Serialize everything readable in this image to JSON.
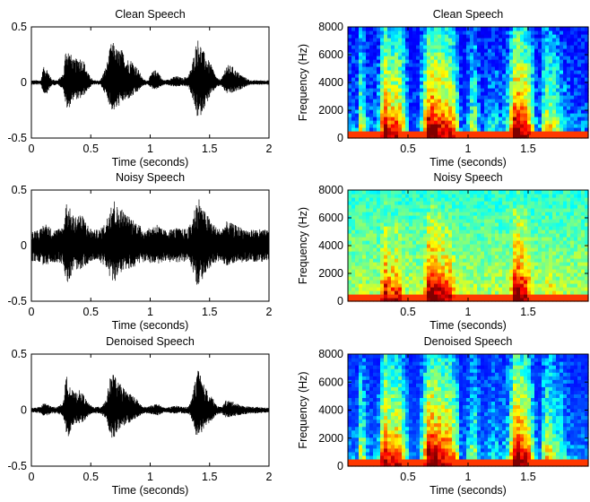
{
  "chart_data": [
    {
      "type": "line",
      "title": "Clean Speech",
      "xlabel": "Time (seconds)",
      "ylabel": "",
      "xlim": [
        0,
        2
      ],
      "ylim": [
        -0.5,
        0.5
      ],
      "xticks": [
        "0",
        "0.5",
        "1",
        "1.5",
        "2"
      ],
      "yticks": [
        "-0.5",
        "0",
        "0.5"
      ],
      "envelope": {
        "t": [
          0,
          0.08,
          0.1,
          0.13,
          0.17,
          0.22,
          0.27,
          0.29,
          0.31,
          0.33,
          0.36,
          0.4,
          0.44,
          0.48,
          0.52,
          0.58,
          0.63,
          0.67,
          0.69,
          0.72,
          0.76,
          0.8,
          0.85,
          0.9,
          0.94,
          0.98,
          1.02,
          1.06,
          1.1,
          1.13,
          1.17,
          1.22,
          1.27,
          1.32,
          1.35,
          1.39,
          1.41,
          1.44,
          1.48,
          1.52,
          1.56,
          1.6,
          1.64,
          1.69,
          1.73,
          1.78,
          1.84,
          1.9,
          2.0
        ],
        "pos": [
          0.02,
          0.02,
          0.14,
          0.13,
          0.03,
          0.02,
          0.08,
          0.32,
          0.3,
          0.26,
          0.2,
          0.24,
          0.2,
          0.08,
          0.02,
          0.02,
          0.15,
          0.35,
          0.36,
          0.3,
          0.3,
          0.22,
          0.2,
          0.12,
          0.03,
          0.02,
          0.1,
          0.12,
          0.03,
          0.02,
          0.04,
          0.06,
          0.04,
          0.06,
          0.15,
          0.38,
          0.4,
          0.3,
          0.22,
          0.15,
          0.04,
          0.03,
          0.16,
          0.15,
          0.1,
          0.06,
          0.02,
          0.02,
          0.02
        ],
        "neg": [
          0.02,
          0.02,
          0.1,
          0.1,
          0.03,
          0.02,
          0.06,
          0.22,
          0.26,
          0.2,
          0.14,
          0.16,
          0.12,
          0.06,
          0.02,
          0.02,
          0.12,
          0.24,
          0.26,
          0.24,
          0.18,
          0.16,
          0.13,
          0.08,
          0.03,
          0.02,
          0.06,
          0.06,
          0.03,
          0.02,
          0.03,
          0.04,
          0.03,
          0.04,
          0.12,
          0.3,
          0.34,
          0.26,
          0.18,
          0.1,
          0.04,
          0.03,
          0.1,
          0.1,
          0.08,
          0.05,
          0.02,
          0.02,
          0.02
        ]
      }
    },
    {
      "type": "heatmap",
      "title": "Clean Speech",
      "xlabel": "Time (seconds)",
      "ylabel": "Frequency (Hz)",
      "xlim": [
        0,
        2
      ],
      "ylim": [
        0,
        8000
      ],
      "xticks": [
        "0.5",
        "1",
        "1.5"
      ],
      "yticks": [
        "0",
        "2000",
        "4000",
        "6000",
        "8000"
      ],
      "colormap": [
        "#00008f",
        "#0000ff",
        "#0080ff",
        "#00ffff",
        "#80ff80",
        "#ffff00",
        "#ff8000",
        "#ff0000",
        "#800000"
      ],
      "energy": [
        0.25,
        0.25,
        0.55,
        0.5,
        0.25,
        0.22,
        0.4,
        0.85,
        0.82,
        0.78,
        0.72,
        0.75,
        0.7,
        0.45,
        0.18,
        0.18,
        0.55,
        0.88,
        0.9,
        0.85,
        0.82,
        0.78,
        0.75,
        0.6,
        0.22,
        0.2,
        0.45,
        0.5,
        0.22,
        0.18,
        0.3,
        0.35,
        0.28,
        0.32,
        0.55,
        0.9,
        0.92,
        0.85,
        0.78,
        0.65,
        0.3,
        0.25,
        0.6,
        0.58,
        0.5,
        0.4,
        0.25,
        0.22,
        0.22
      ],
      "noise_floor": 0.15
    },
    {
      "type": "line",
      "title": "Noisy Speech",
      "xlabel": "Time (seconds)",
      "ylabel": "",
      "xlim": [
        0,
        2
      ],
      "ylim": [
        -0.5,
        0.5
      ],
      "xticks": [
        "0",
        "0.5",
        "1",
        "1.5",
        "2"
      ],
      "yticks": [
        "-0.5",
        "0",
        "0.5"
      ],
      "envelope": {
        "t": [
          0,
          0.08,
          0.1,
          0.13,
          0.17,
          0.22,
          0.27,
          0.29,
          0.31,
          0.33,
          0.36,
          0.4,
          0.44,
          0.48,
          0.52,
          0.58,
          0.63,
          0.67,
          0.69,
          0.72,
          0.76,
          0.8,
          0.85,
          0.9,
          0.94,
          0.98,
          1.02,
          1.06,
          1.1,
          1.13,
          1.17,
          1.22,
          1.27,
          1.32,
          1.35,
          1.39,
          1.41,
          1.44,
          1.48,
          1.52,
          1.56,
          1.6,
          1.64,
          1.69,
          1.73,
          1.78,
          1.84,
          1.9,
          2.0
        ],
        "pos": [
          0.14,
          0.15,
          0.2,
          0.2,
          0.15,
          0.15,
          0.18,
          0.4,
          0.38,
          0.32,
          0.26,
          0.3,
          0.26,
          0.18,
          0.14,
          0.15,
          0.22,
          0.42,
          0.44,
          0.36,
          0.34,
          0.28,
          0.25,
          0.2,
          0.15,
          0.15,
          0.18,
          0.2,
          0.15,
          0.14,
          0.15,
          0.16,
          0.15,
          0.16,
          0.22,
          0.42,
          0.44,
          0.34,
          0.28,
          0.22,
          0.16,
          0.15,
          0.22,
          0.2,
          0.18,
          0.16,
          0.14,
          0.15,
          0.14
        ],
        "neg": [
          0.14,
          0.15,
          0.18,
          0.18,
          0.15,
          0.15,
          0.17,
          0.3,
          0.34,
          0.28,
          0.22,
          0.22,
          0.2,
          0.16,
          0.14,
          0.15,
          0.2,
          0.32,
          0.34,
          0.3,
          0.26,
          0.22,
          0.2,
          0.17,
          0.15,
          0.15,
          0.17,
          0.17,
          0.15,
          0.14,
          0.15,
          0.15,
          0.15,
          0.15,
          0.2,
          0.36,
          0.38,
          0.3,
          0.24,
          0.18,
          0.15,
          0.15,
          0.18,
          0.17,
          0.16,
          0.15,
          0.14,
          0.15,
          0.14
        ]
      }
    },
    {
      "type": "heatmap",
      "title": "Noisy Speech",
      "xlabel": "Time (seconds)",
      "ylabel": "Frequency (Hz)",
      "xlim": [
        0,
        2
      ],
      "ylim": [
        0,
        8000
      ],
      "xticks": [
        "0.5",
        "1",
        "1.5"
      ],
      "yticks": [
        "0",
        "2000",
        "4000",
        "6000",
        "8000"
      ],
      "colormap": [
        "#00008f",
        "#0000ff",
        "#0080ff",
        "#00ffff",
        "#80ff80",
        "#ffff00",
        "#ff8000",
        "#ff0000",
        "#800000"
      ],
      "energy": [
        0.25,
        0.25,
        0.55,
        0.5,
        0.25,
        0.22,
        0.4,
        0.85,
        0.82,
        0.78,
        0.72,
        0.75,
        0.7,
        0.45,
        0.18,
        0.18,
        0.55,
        0.88,
        0.9,
        0.85,
        0.82,
        0.78,
        0.75,
        0.6,
        0.22,
        0.2,
        0.45,
        0.5,
        0.22,
        0.18,
        0.3,
        0.35,
        0.28,
        0.32,
        0.55,
        0.9,
        0.92,
        0.85,
        0.78,
        0.65,
        0.3,
        0.25,
        0.6,
        0.58,
        0.5,
        0.4,
        0.25,
        0.22,
        0.22
      ],
      "noise_floor": 0.55
    },
    {
      "type": "line",
      "title": "Denoised Speech",
      "xlabel": "Time (seconds)",
      "ylabel": "",
      "xlim": [
        0,
        2
      ],
      "ylim": [
        -0.5,
        0.5
      ],
      "xticks": [
        "0",
        "0.5",
        "1",
        "1.5",
        "2"
      ],
      "yticks": [
        "-0.5",
        "0",
        "0.5"
      ],
      "envelope": {
        "t": [
          0,
          0.08,
          0.1,
          0.13,
          0.17,
          0.22,
          0.27,
          0.29,
          0.31,
          0.33,
          0.36,
          0.4,
          0.44,
          0.48,
          0.52,
          0.58,
          0.63,
          0.67,
          0.69,
          0.72,
          0.76,
          0.8,
          0.85,
          0.9,
          0.94,
          0.98,
          1.02,
          1.06,
          1.1,
          1.13,
          1.17,
          1.22,
          1.27,
          1.32,
          1.35,
          1.39,
          1.41,
          1.44,
          1.48,
          1.52,
          1.56,
          1.6,
          1.64,
          1.69,
          1.73,
          1.78,
          1.84,
          1.9,
          2.0
        ],
        "pos": [
          0.02,
          0.03,
          0.06,
          0.06,
          0.03,
          0.03,
          0.07,
          0.3,
          0.3,
          0.22,
          0.15,
          0.18,
          0.14,
          0.06,
          0.03,
          0.03,
          0.1,
          0.33,
          0.34,
          0.26,
          0.22,
          0.17,
          0.14,
          0.08,
          0.03,
          0.03,
          0.05,
          0.06,
          0.03,
          0.02,
          0.03,
          0.04,
          0.03,
          0.03,
          0.1,
          0.34,
          0.36,
          0.25,
          0.18,
          0.12,
          0.04,
          0.03,
          0.09,
          0.08,
          0.06,
          0.04,
          0.03,
          0.03,
          0.02
        ],
        "neg": [
          0.02,
          0.03,
          0.05,
          0.05,
          0.03,
          0.03,
          0.06,
          0.2,
          0.24,
          0.18,
          0.12,
          0.12,
          0.1,
          0.05,
          0.03,
          0.03,
          0.08,
          0.24,
          0.26,
          0.2,
          0.16,
          0.13,
          0.1,
          0.06,
          0.03,
          0.03,
          0.04,
          0.05,
          0.03,
          0.02,
          0.03,
          0.03,
          0.03,
          0.03,
          0.08,
          0.26,
          0.28,
          0.2,
          0.14,
          0.09,
          0.04,
          0.03,
          0.07,
          0.06,
          0.05,
          0.04,
          0.03,
          0.03,
          0.02
        ]
      }
    },
    {
      "type": "heatmap",
      "title": "Denoised Speech",
      "xlabel": "Time (seconds)",
      "ylabel": "Frequency (Hz)",
      "xlim": [
        0,
        2
      ],
      "ylim": [
        0,
        8000
      ],
      "xticks": [
        "0.5",
        "1",
        "1.5"
      ],
      "yticks": [
        "0",
        "2000",
        "4000",
        "6000",
        "8000"
      ],
      "colormap": [
        "#00008f",
        "#0000ff",
        "#0080ff",
        "#00ffff",
        "#80ff80",
        "#ffff00",
        "#ff8000",
        "#ff0000",
        "#800000"
      ],
      "energy": [
        0.25,
        0.25,
        0.55,
        0.5,
        0.25,
        0.22,
        0.4,
        0.85,
        0.82,
        0.78,
        0.72,
        0.75,
        0.7,
        0.45,
        0.18,
        0.18,
        0.55,
        0.88,
        0.9,
        0.85,
        0.82,
        0.78,
        0.75,
        0.6,
        0.22,
        0.2,
        0.45,
        0.5,
        0.22,
        0.18,
        0.3,
        0.35,
        0.28,
        0.32,
        0.55,
        0.9,
        0.92,
        0.85,
        0.78,
        0.65,
        0.3,
        0.25,
        0.6,
        0.58,
        0.5,
        0.4,
        0.25,
        0.22,
        0.22
      ],
      "noise_floor": 0.2
    }
  ]
}
